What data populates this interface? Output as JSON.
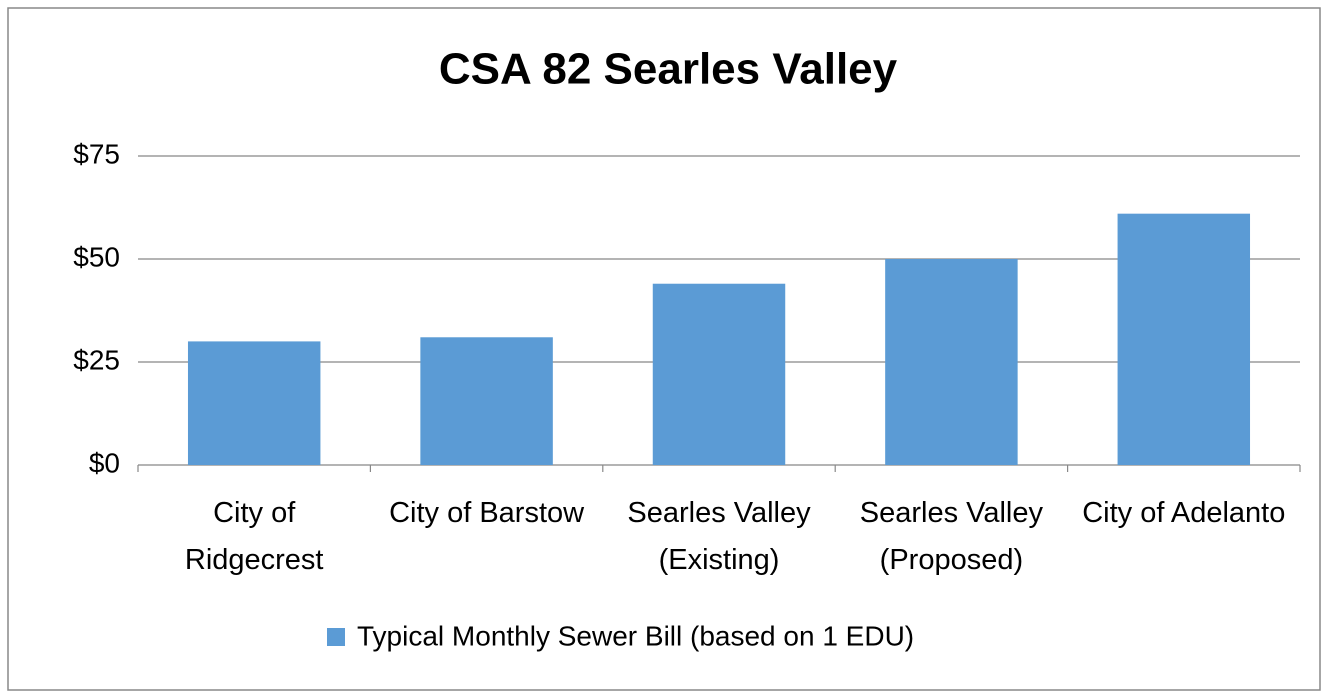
{
  "chart_data": {
    "type": "bar",
    "title": "CSA 82 Searles Valley",
    "categories": [
      "City of Ridgecrest",
      "City of Barstow",
      "Searles Valley (Existing)",
      "Searles Valley (Proposed)",
      "City of Adelanto"
    ],
    "series": [
      {
        "name": "Typical Monthly Sewer Bill (based on 1 EDU)",
        "color": "#5b9bd5",
        "values": [
          30,
          31,
          44,
          50,
          61
        ]
      }
    ],
    "ylim": [
      0,
      75
    ],
    "yticks": [
      {
        "value": 0,
        "label": "$0"
      },
      {
        "value": 25,
        "label": "$25"
      },
      {
        "value": 50,
        "label": "$50"
      },
      {
        "value": 75,
        "label": "$75"
      }
    ],
    "grid": true,
    "legend": "bottom"
  }
}
